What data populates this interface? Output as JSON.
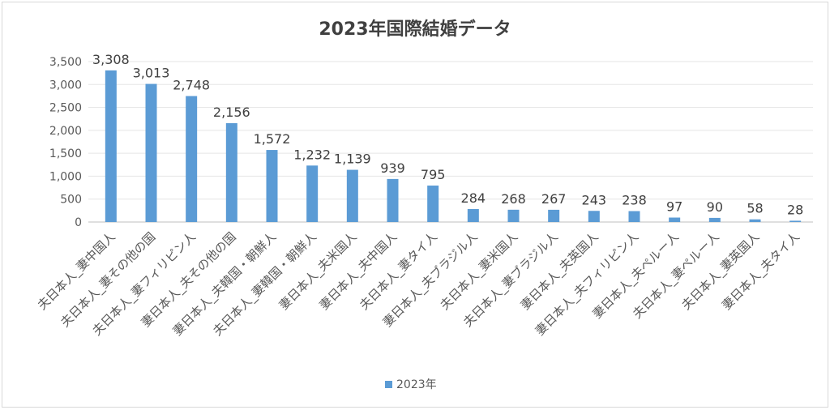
{
  "chart_data": {
    "type": "bar",
    "title": "2023年国際結婚データ",
    "xlabel": "",
    "ylabel": "",
    "ylim": [
      0,
      3500
    ],
    "yticks": [
      "0",
      "500",
      "1,000",
      "1,500",
      "2,000",
      "2,500",
      "3,000",
      "3,500"
    ],
    "grid": true,
    "legend_position": "bottom",
    "categories": [
      "夫日本人_妻中国人",
      "夫日本人_妻その他の国",
      "夫日本人_妻フィリピン人",
      "妻日本人_夫その他の国",
      "妻日本人_夫韓国・朝鮮人",
      "夫日本人_妻韓国・朝鮮人",
      "妻日本人_夫米国人",
      "妻日本人_夫中国人",
      "夫日本人_妻タイ人",
      "妻日本人_夫ブラジル人",
      "夫日本人_妻米国人",
      "夫日本人_妻ブラジル人",
      "妻日本人_夫英国人",
      "妻日本人_夫フィリピン人",
      "妻日本人_夫ペルー人",
      "夫日本人_妻ペルー人",
      "夫日本人_妻英国人",
      "妻日本人_夫タイ人"
    ],
    "series": [
      {
        "name": "2023年",
        "color": "#5b9bd5",
        "values": [
          3308,
          3013,
          2748,
          2156,
          1572,
          1232,
          1139,
          939,
          795,
          284,
          268,
          267,
          243,
          238,
          97,
          90,
          58,
          28
        ],
        "labels": [
          "3,308",
          "3,013",
          "2,748",
          "2,156",
          "1,572",
          "1,232",
          "1,139",
          "939",
          "795",
          "284",
          "268",
          "267",
          "243",
          "238",
          "97",
          "90",
          "58",
          "28"
        ]
      }
    ]
  }
}
